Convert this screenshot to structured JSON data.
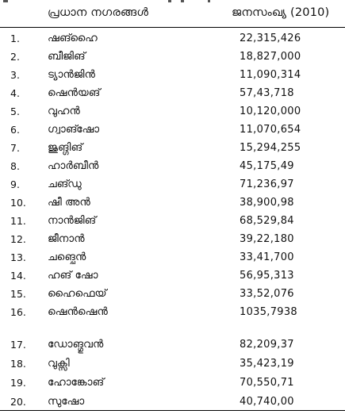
{
  "table": {
    "header": {
      "city_col": "പ്രധാന നഗരങ്ങൾ",
      "pop_col": "ജനസംഖ്യ (2010)"
    },
    "rows": [
      {
        "num": "1.",
        "city": "ഷങ്ഹൈ",
        "pop": "22,315,426"
      },
      {
        "num": "2.",
        "city": "ബീജിങ്",
        "pop": "18,827,000"
      },
      {
        "num": "3.",
        "city": "ട്യാൻജിൻ",
        "pop": "11,090,314"
      },
      {
        "num": "4.",
        "city": "ഷെൻയങ്",
        "pop": "57,43,718"
      },
      {
        "num": "5.",
        "city": "വുഹൻ",
        "pop": "10,120,000"
      },
      {
        "num": "6.",
        "city": "ഗ്വാങ്ഷോ",
        "pop": "11,070,654"
      },
      {
        "num": "7.",
        "city": "ജുങ്ഗിങ്",
        "pop": "15,294,255"
      },
      {
        "num": "8.",
        "city": "ഹാർബീൻ",
        "pop": "45,175,49"
      },
      {
        "num": "9.",
        "city": "ചങ്ഡു",
        "pop": "71,236,97"
      },
      {
        "num": "10.",
        "city": "ഷീ അൻ",
        "pop": "38,900,98"
      },
      {
        "num": "11.",
        "city": "നാൻജിങ്",
        "pop": "68,529,84"
      },
      {
        "num": "12.",
        "city": "ജീനാൻ",
        "pop": "39,22,180"
      },
      {
        "num": "13.",
        "city": "ചങ്ചെൻ",
        "pop": "33,41,700"
      },
      {
        "num": "14.",
        "city": "ഹങ് ഷോ",
        "pop": "56,95,313"
      },
      {
        "num": "15.",
        "city": "ഹൈഫെയ്",
        "pop": "33,52,076"
      },
      {
        "num": "16.",
        "city": "ഷെൻഷെൻ",
        "pop": "1035,7938"
      },
      {
        "num": "17.",
        "city": "ഡോങ്ഗുവൻ",
        "pop": "82,209,37"
      },
      {
        "num": "18.",
        "city": "വുക്സി",
        "pop": "35,423,19"
      },
      {
        "num": "19.",
        "city": "ഹോങ്കോങ്",
        "pop": "70,550,71"
      },
      {
        "num": "20.",
        "city": "സുഷോ",
        "pop": "40,740,00"
      }
    ]
  }
}
